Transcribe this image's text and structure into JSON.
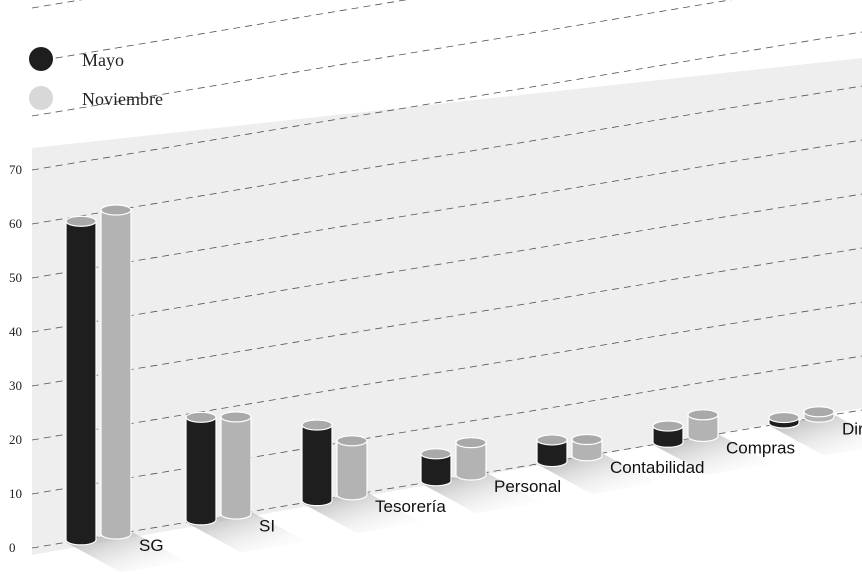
{
  "chart_data": {
    "type": "bar",
    "categories": [
      "SG",
      "SI",
      "Tesorería",
      "Personal",
      "Contabilidad",
      "Compras",
      "Dirección"
    ],
    "series": [
      {
        "name": "Mayo",
        "color": "#1e1e1e",
        "values": [
          59,
          19,
          14,
          5,
          4,
          3,
          1
        ]
      },
      {
        "name": "Noviembre",
        "color": "#b3b3b3",
        "values": [
          60,
          18,
          10,
          6,
          3,
          4,
          1
        ]
      }
    ],
    "ylim": [
      0,
      70
    ],
    "yticks": [
      "0",
      "10",
      "20",
      "30",
      "40",
      "50",
      "60",
      "70"
    ],
    "grid": true,
    "legend_position": "top-left"
  }
}
